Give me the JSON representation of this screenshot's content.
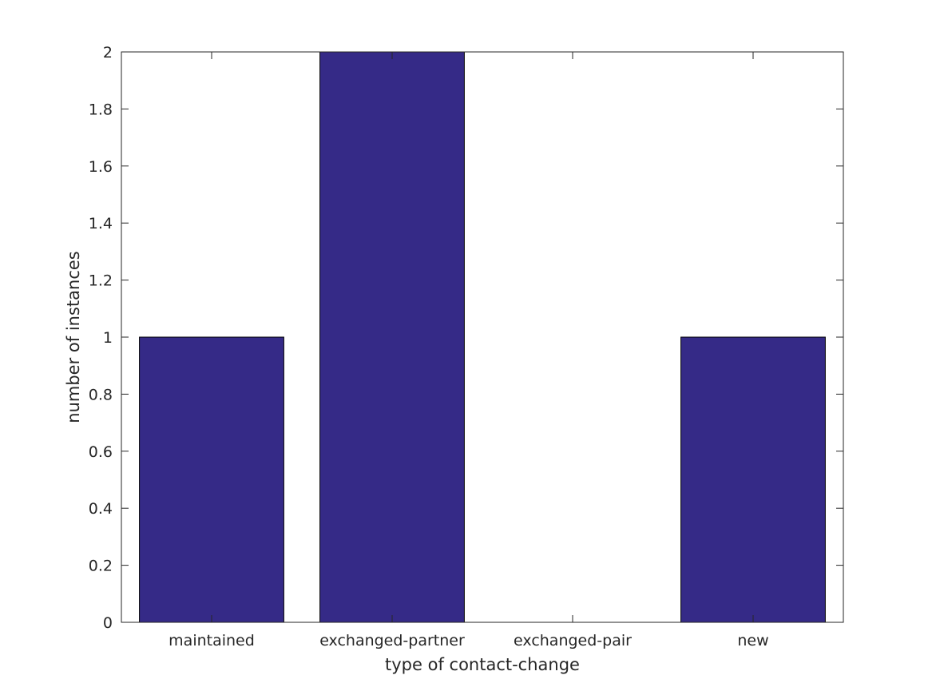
{
  "chart_data": {
    "type": "bar",
    "categories": [
      "maintained",
      "exchanged-partner",
      "exchanged-pair",
      "new"
    ],
    "values": [
      1,
      2,
      0,
      1
    ],
    "title": "",
    "xlabel": "type of contact-change",
    "ylabel": "number of instances",
    "ylim": [
      0,
      2
    ],
    "yticks": [
      "0",
      "0.2",
      "0.4",
      "0.6",
      "0.8",
      "1",
      "1.2",
      "1.4",
      "1.6",
      "1.8",
      "2"
    ],
    "grid": false,
    "legend": "none",
    "colors": {
      "bar_fill": "#352a87",
      "bar_edge": "#000000",
      "axes": "#262626",
      "text": "#262626"
    }
  }
}
